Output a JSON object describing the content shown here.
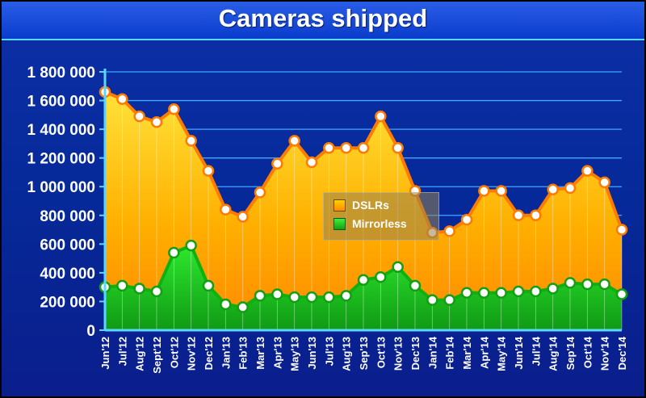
{
  "chart_data": {
    "type": "area",
    "title": "Cameras shipped",
    "categories": [
      "Jun'12",
      "Jul'12",
      "Aug'12",
      "Sept'12",
      "Oct'12",
      "Nov'12",
      "Dec'12",
      "Jan'13",
      "Feb'13",
      "Mar'13",
      "Apr'13",
      "May'13",
      "Jun'13",
      "Jul'13",
      "Aug'13",
      "Sep'13",
      "Oct'13",
      "Nov'13",
      "Dec'13",
      "Jan'14",
      "Feb'14",
      "Mar'14",
      "Apr'14",
      "May'14",
      "Jun'14",
      "Jul'14",
      "Aug'14",
      "Sep'14",
      "Oct'14",
      "Nov'14",
      "Dec'14"
    ],
    "series": [
      {
        "name": "DSLRs",
        "color": "#ff9a00",
        "values": [
          1660000,
          1610000,
          1490000,
          1450000,
          1540000,
          1320000,
          1110000,
          840000,
          790000,
          960000,
          1160000,
          1320000,
          1170000,
          1270000,
          1270000,
          1270000,
          1490000,
          1270000,
          970000,
          680000,
          690000,
          770000,
          970000,
          970000,
          800000,
          800000,
          980000,
          990000,
          1110000,
          1030000,
          700000
        ]
      },
      {
        "name": "Mirrorless",
        "color": "#22cc22",
        "values": [
          300000,
          310000,
          290000,
          270000,
          540000,
          590000,
          310000,
          180000,
          160000,
          240000,
          250000,
          230000,
          230000,
          230000,
          240000,
          350000,
          370000,
          440000,
          310000,
          210000,
          210000,
          260000,
          260000,
          260000,
          270000,
          270000,
          290000,
          330000,
          320000,
          320000,
          250000
        ]
      }
    ],
    "ylim": [
      0,
      1800000
    ],
    "yticks": [
      "0",
      "200 000",
      "400 000",
      "600 000",
      "800 000",
      "1 000 000",
      "1 200 000",
      "1 400 000",
      "1 600 000",
      "1 800 000"
    ],
    "grid": true,
    "legend": "center"
  }
}
